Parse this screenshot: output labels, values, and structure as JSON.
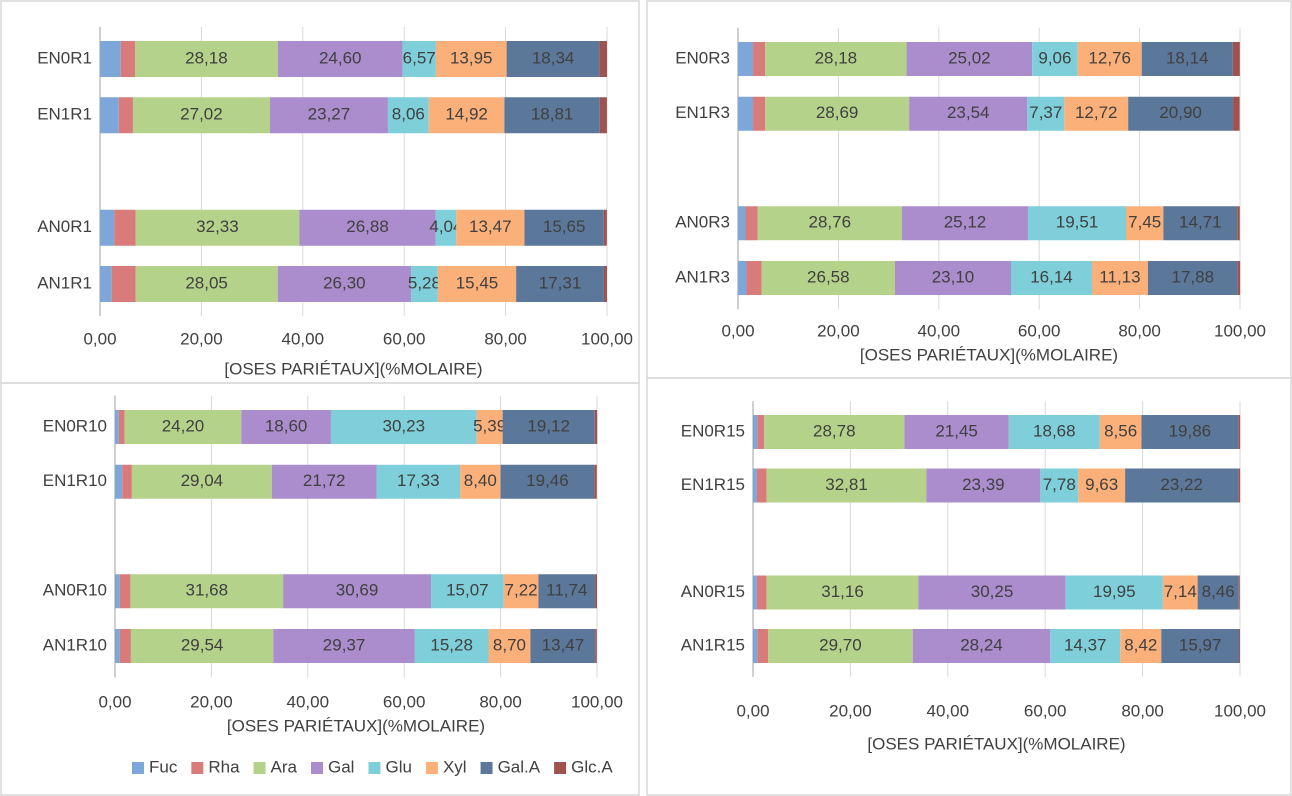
{
  "chart_data": [
    {
      "type": "bar",
      "orientation": "horizontal",
      "stacked": true,
      "grid": true,
      "categories": [
        "EN0R1",
        "EN1R1",
        null,
        "AN0R1",
        "AN1R1"
      ],
      "xlabel": "[OSES PARIÉTAUX](%MOLAIRE)",
      "xlim": [
        0,
        100
      ],
      "xticks": [
        {
          "value": 0,
          "label": "0,00"
        },
        {
          "value": 20,
          "label": "20,00"
        },
        {
          "value": 40,
          "label": "40,00"
        },
        {
          "value": 60,
          "label": "60,00"
        },
        {
          "value": 80,
          "label": "80,00"
        },
        {
          "value": 100,
          "label": "100,00"
        }
      ],
      "series": [
        {
          "color": "#7ca7d8",
          "values": [
            4.1,
            3.7,
            null,
            2.8,
            2.3
          ]
        },
        {
          "color": "#d97b7b",
          "values": [
            2.8,
            2.8,
            null,
            4.2,
            4.7
          ]
        },
        {
          "color": "#b5d28a",
          "values": [
            28.18,
            27.02,
            null,
            32.33,
            28.05
          ],
          "value_labels": [
            "28,18",
            "27,02",
            null,
            "32,33",
            "28,05"
          ]
        },
        {
          "color": "#ab8ccc",
          "values": [
            24.6,
            23.27,
            null,
            26.88,
            26.3
          ],
          "value_labels": [
            "24,60",
            "23,27",
            null,
            "26,88",
            "26,30"
          ]
        },
        {
          "color": "#7ecfd9",
          "values": [
            6.57,
            8.06,
            null,
            4.04,
            5.28
          ],
          "value_labels": [
            "6,57",
            "8,06",
            null,
            "4,04",
            "5,28"
          ]
        },
        {
          "color": "#fbb07a",
          "values": [
            13.95,
            14.92,
            null,
            13.47,
            15.45
          ],
          "value_labels": [
            "13,95",
            "14,92",
            null,
            "13,47",
            "15,45"
          ]
        },
        {
          "color": "#5b779a",
          "values": [
            18.34,
            18.81,
            null,
            15.65,
            17.31
          ],
          "value_labels": [
            "18,34",
            "18,81",
            null,
            "15,65",
            "17,31"
          ]
        },
        {
          "color": "#a0524f",
          "values": [
            1.46,
            1.4,
            null,
            0.6,
            0.6
          ]
        }
      ]
    },
    {
      "type": "bar",
      "orientation": "horizontal",
      "stacked": true,
      "grid": true,
      "categories": [
        "EN0R3",
        "EN1R3",
        null,
        "AN0R3",
        "AN1R3"
      ],
      "xlabel": "[OSES PARIÉTAUX](%MOLAIRE)",
      "xlim": [
        0,
        100
      ],
      "xticks": [
        {
          "value": 0,
          "label": "0,00"
        },
        {
          "value": 20,
          "label": "20,00"
        },
        {
          "value": 40,
          "label": "40,00"
        },
        {
          "value": 60,
          "label": "60,00"
        },
        {
          "value": 80,
          "label": "80,00"
        },
        {
          "value": 100,
          "label": "100,00"
        }
      ],
      "series": [
        {
          "color": "#7ca7d8",
          "values": [
            3.0,
            3.0,
            null,
            1.5,
            1.7
          ]
        },
        {
          "color": "#d97b7b",
          "values": [
            2.4,
            2.4,
            null,
            2.4,
            3.0
          ]
        },
        {
          "color": "#b5d28a",
          "values": [
            28.18,
            28.69,
            null,
            28.76,
            26.58
          ],
          "value_labels": [
            "28,18",
            "28,69",
            null,
            "28,76",
            "26,58"
          ]
        },
        {
          "color": "#ab8ccc",
          "values": [
            25.02,
            23.54,
            null,
            25.12,
            23.1
          ],
          "value_labels": [
            "25,02",
            "23,54",
            null,
            "25,12",
            "23,10"
          ]
        },
        {
          "color": "#7ecfd9",
          "values": [
            9.06,
            7.37,
            null,
            19.51,
            16.14
          ],
          "value_labels": [
            "9,06",
            "7,37",
            null,
            "19,51",
            "16,14"
          ]
        },
        {
          "color": "#fbb07a",
          "values": [
            12.76,
            12.72,
            null,
            7.45,
            11.13
          ],
          "value_labels": [
            "12,76",
            "12,72",
            null,
            "7,45",
            "11,13"
          ]
        },
        {
          "color": "#5b779a",
          "values": [
            18.14,
            20.9,
            null,
            14.71,
            17.88
          ],
          "value_labels": [
            "18,14",
            "20,90",
            null,
            "14,71",
            "17,88"
          ]
        },
        {
          "color": "#a0524f",
          "values": [
            1.4,
            1.3,
            null,
            0.5,
            0.5
          ]
        }
      ]
    },
    {
      "type": "bar",
      "orientation": "horizontal",
      "stacked": true,
      "grid": true,
      "legend": "bottom",
      "categories": [
        "EN0R10",
        "EN1R10",
        null,
        "AN0R10",
        "AN1R10"
      ],
      "xlabel": "[OSES PARIÉTAUX](%MOLAIRE)",
      "xlim": [
        0,
        100
      ],
      "xticks": [
        {
          "value": 0,
          "label": "0,00"
        },
        {
          "value": 20,
          "label": "20,00"
        },
        {
          "value": 40,
          "label": "40,00"
        },
        {
          "value": 60,
          "label": "60,00"
        },
        {
          "value": 80,
          "label": "80,00"
        },
        {
          "value": 100,
          "label": "100,00"
        }
      ],
      "series": [
        {
          "name": "Fuc",
          "color": "#7ca7d8",
          "values": [
            0.8,
            1.5,
            null,
            1.0,
            1.0
          ]
        },
        {
          "name": "Rha",
          "color": "#d97b7b",
          "values": [
            1.2,
            2.0,
            null,
            2.2,
            2.3
          ]
        },
        {
          "name": "Ara",
          "color": "#b5d28a",
          "values": [
            24.2,
            29.04,
            null,
            31.68,
            29.54
          ],
          "value_labels": [
            "24,20",
            "29,04",
            null,
            "31,68",
            "29,54"
          ]
        },
        {
          "name": "Gal",
          "color": "#ab8ccc",
          "values": [
            18.6,
            21.72,
            null,
            30.69,
            29.37
          ],
          "value_labels": [
            "18,60",
            "21,72",
            null,
            "30,69",
            "29,37"
          ]
        },
        {
          "name": "Glu",
          "color": "#7ecfd9",
          "values": [
            30.23,
            17.33,
            null,
            15.07,
            15.28
          ],
          "value_labels": [
            "30,23",
            "17,33",
            null,
            "15,07",
            "15,28"
          ]
        },
        {
          "name": "Xyl",
          "color": "#fbb07a",
          "values": [
            5.39,
            8.4,
            null,
            7.22,
            8.7
          ],
          "value_labels": [
            "5,39",
            "8,40",
            null,
            "7,22",
            "8,70"
          ]
        },
        {
          "name": "Gal.A",
          "color": "#5b779a",
          "values": [
            19.12,
            19.46,
            null,
            11.74,
            13.47
          ],
          "value_labels": [
            "19,12",
            "19,46",
            null,
            "11,74",
            "13,47"
          ]
        },
        {
          "name": "Glc.A",
          "color": "#a0524f",
          "values": [
            0.5,
            0.5,
            null,
            0.4,
            0.3
          ]
        }
      ]
    },
    {
      "type": "bar",
      "orientation": "horizontal",
      "stacked": true,
      "grid": true,
      "categories": [
        "EN0R15",
        "EN1R15",
        null,
        "AN0R15",
        "AN1R15"
      ],
      "xlabel": "[OSES PARIÉTAUX](%MOLAIRE)",
      "xlim": [
        0,
        100
      ],
      "xticks": [
        {
          "value": 0,
          "label": "0,00"
        },
        {
          "value": 20,
          "label": "20,00"
        },
        {
          "value": 40,
          "label": "40,00"
        },
        {
          "value": 60,
          "label": "60,00"
        },
        {
          "value": 80,
          "label": "80,00"
        },
        {
          "value": 100,
          "label": "100,00"
        }
      ],
      "series": [
        {
          "color": "#7ca7d8",
          "values": [
            0.9,
            0.8,
            null,
            0.8,
            0.9
          ]
        },
        {
          "color": "#d97b7b",
          "values": [
            1.4,
            2.0,
            null,
            2.0,
            2.2
          ]
        },
        {
          "color": "#b5d28a",
          "values": [
            28.78,
            32.81,
            null,
            31.16,
            29.7
          ],
          "value_labels": [
            "28,78",
            "32,81",
            null,
            "31,16",
            "29,70"
          ]
        },
        {
          "color": "#ab8ccc",
          "values": [
            21.45,
            23.39,
            null,
            30.25,
            28.24
          ],
          "value_labels": [
            "21,45",
            "23,39",
            null,
            "30,25",
            "28,24"
          ]
        },
        {
          "color": "#7ecfd9",
          "values": [
            18.68,
            7.78,
            null,
            19.95,
            14.37
          ],
          "value_labels": [
            "18,68",
            "7,78",
            null,
            "19,95",
            "14,37"
          ]
        },
        {
          "color": "#fbb07a",
          "values": [
            8.56,
            9.63,
            null,
            7.14,
            8.42
          ],
          "value_labels": [
            "8,56",
            "9,63",
            null,
            "7,14",
            "8,42"
          ]
        },
        {
          "color": "#5b779a",
          "values": [
            19.86,
            23.22,
            null,
            8.46,
            15.97
          ],
          "value_labels": [
            "19,86",
            "23,22",
            null,
            "8,46",
            "15,97"
          ]
        },
        {
          "color": "#a0524f",
          "values": [
            0.4,
            0.4,
            null,
            0.2,
            0.2
          ]
        }
      ]
    }
  ]
}
